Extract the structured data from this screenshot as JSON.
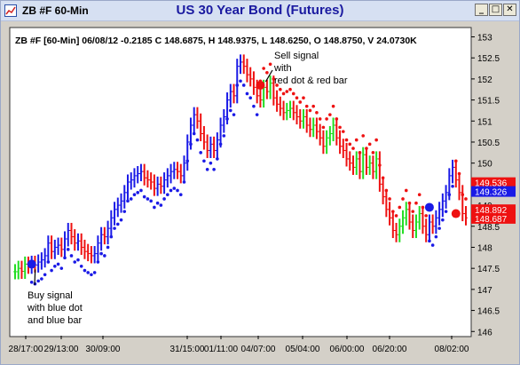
{
  "window": {
    "label": "ZB #F 60-Min",
    "title": "US 30 Year Bond (Futures)",
    "buttons": {
      "minimize": "_",
      "maximize": "□",
      "close": "✕"
    },
    "icons": [
      "chart-app-icon",
      "minimize-icon",
      "maximize-icon",
      "close-icon"
    ]
  },
  "colors": {
    "up": "#22dd22",
    "down": "#ee1111",
    "buy": "#1a1ae6",
    "sell": "#ee1111",
    "tag_red": "#ee1111",
    "tag_blue": "#1a1ae6"
  },
  "chart_data": {
    "type": "bar",
    "subtype": "ohlc-60min",
    "header": "ZB #F [60-Min] 06/08/12  -0.2185 C 148.6875, H 148.9375, L 148.6250, O 148.8750, V 24.0730K",
    "ylim": [
      145.9,
      153.2
    ],
    "y_ticks": [
      146,
      146.5,
      147,
      147.5,
      148,
      148.5,
      149,
      149.5,
      150,
      150.5,
      151,
      151.5,
      152,
      152.5,
      153
    ],
    "x_ticks": [
      "28/17:00",
      "29/13:00",
      "30/09:00",
      "31/15:00",
      "01/11:00",
      "04/07:00",
      "05/04:00",
      "06/00:00",
      "06/20:00",
      "08/02:00"
    ],
    "price_tags": [
      {
        "label": "149.536",
        "value": 149.536,
        "color": "red"
      },
      {
        "label": "149.326",
        "value": 149.326,
        "color": "blue"
      },
      {
        "label": "148.892",
        "value": 148.892,
        "color": "red"
      },
      {
        "label": "148.687",
        "value": 148.687,
        "color": "red"
      }
    ],
    "annotations": {
      "buy": "Buy signal\nwith blue dot\nand blue bar",
      "sell": "Sell signal\nwith\nred dot & red bar"
    },
    "signals": [
      {
        "type": "buy",
        "bar_index": 5,
        "value": 147.6
      },
      {
        "type": "sell",
        "bar_index": 74,
        "value": 151.85
      },
      {
        "type": "buy",
        "bar_index": 125,
        "value": 148.95
      },
      {
        "type": "sell",
        "bar_index": 133,
        "value": 148.8
      }
    ],
    "closes": [
      147.42,
      147.5,
      147.43,
      147.6,
      147.55,
      147.62,
      147.58,
      147.65,
      147.7,
      147.8,
      148.1,
      147.9,
      148,
      148.05,
      147.95,
      148.2,
      148.4,
      148.25,
      148.1,
      148.15,
      148.0,
      147.9,
      147.85,
      147.8,
      147.85,
      148.1,
      148.3,
      148.25,
      148.45,
      148.7,
      148.9,
      149.0,
      149.1,
      149.3,
      149.55,
      149.6,
      149.7,
      149.75,
      149.8,
      149.65,
      149.6,
      149.55,
      149.4,
      149.5,
      149.45,
      149.6,
      149.7,
      149.8,
      149.85,
      149.8,
      149.7,
      150.0,
      150.5,
      150.9,
      151.15,
      151.0,
      150.7,
      150.5,
      150.3,
      150.45,
      150.3,
      150.55,
      150.9,
      151.1,
      151.5,
      151.7,
      151.6,
      152.3,
      152.4,
      152.3,
      152.1,
      152.0,
      151.8,
      151.6,
      151.5,
      151.8,
      151.7,
      151.9,
      151.55,
      151.4,
      151.3,
      151.2,
      151.25,
      151.3,
      151.2,
      151.1,
      151.0,
      151.1,
      150.9,
      150.8,
      150.9,
      150.75,
      150.6,
      150.4,
      150.6,
      150.7,
      150.9,
      150.6,
      150.4,
      150.3,
      150.1,
      150.0,
      149.9,
      150.1,
      149.8,
      150.2,
      149.9,
      150.0,
      149.8,
      150.1,
      149.5,
      149.2,
      148.9,
      148.7,
      148.4,
      148.3,
      148.5,
      148.7,
      148.9,
      148.6,
      148.4,
      148.6,
      148.8,
      148.5,
      148.3,
      148.6,
      148.5,
      148.7,
      148.9,
      149.1,
      149.3,
      149.7,
      149.9,
      149.6,
      149.3,
      148.8,
      148.7
    ]
  }
}
